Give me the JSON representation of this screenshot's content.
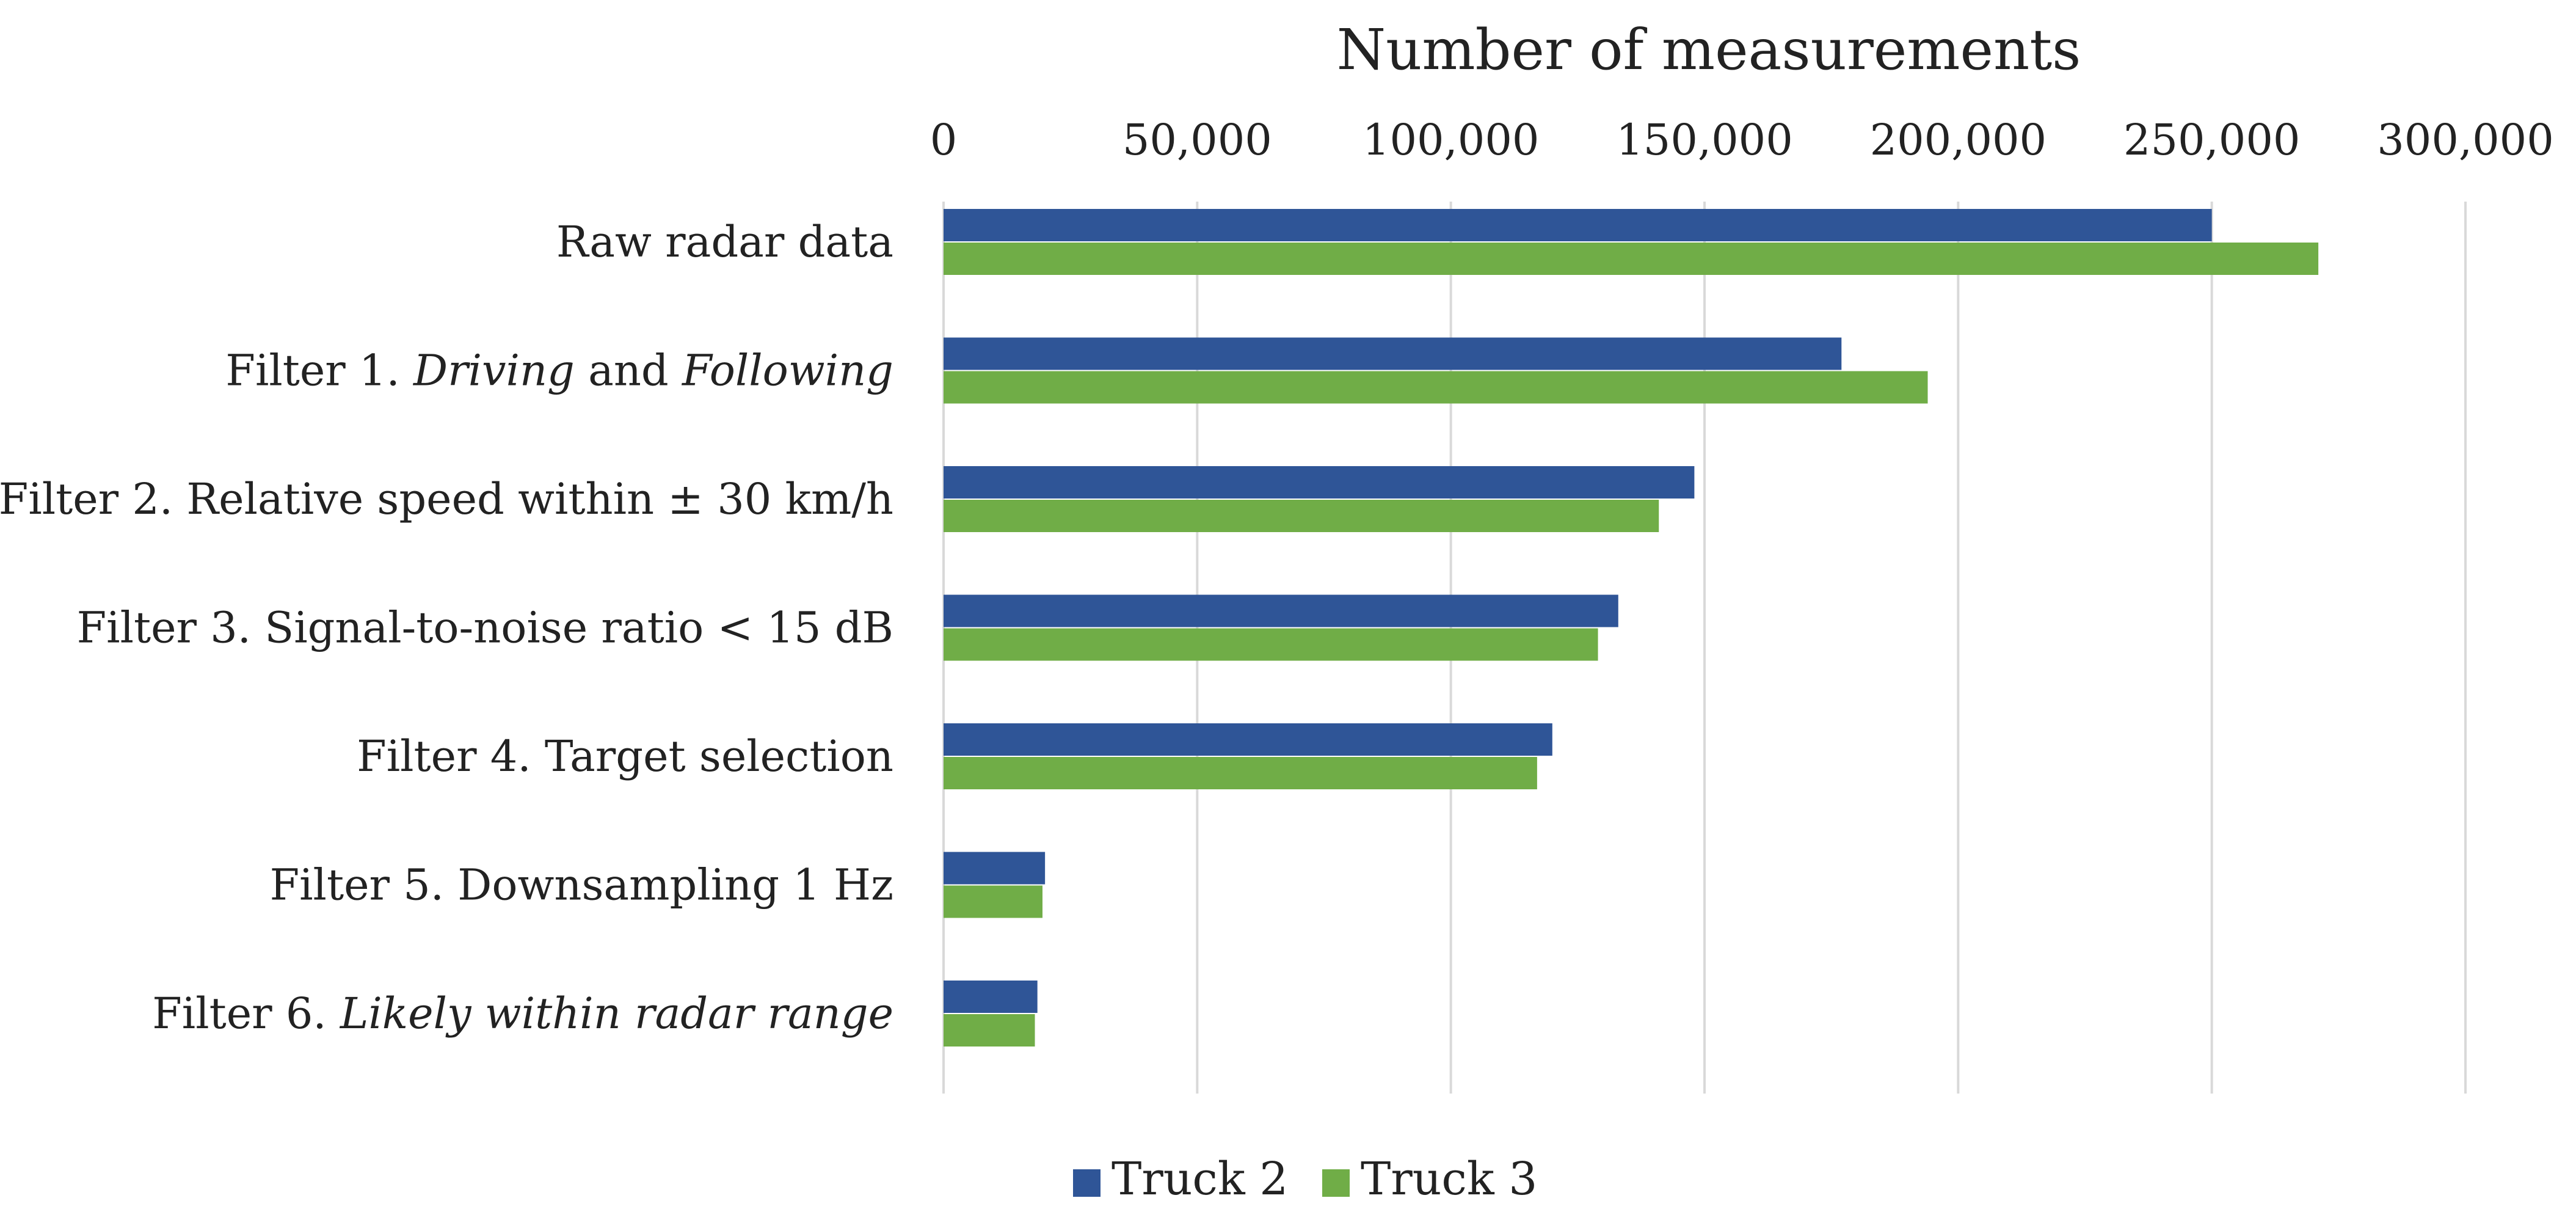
{
  "chart_data": {
    "type": "bar",
    "orientation": "horizontal",
    "title": "",
    "xlabel": "Number of measurements",
    "ylabel": "",
    "xlim": [
      0,
      300000
    ],
    "xticks": [
      0,
      50000,
      100000,
      150000,
      200000,
      250000,
      300000
    ],
    "xtick_labels": [
      "0",
      "50,000",
      "100,000",
      "150,000",
      "200,000",
      "250,000",
      "300,000"
    ],
    "x_axis_position": "top",
    "grid": true,
    "legend_position": "bottom-center",
    "categories": [
      {
        "label": [
          {
            "text": "Raw radar data",
            "italic": false
          }
        ]
      },
      {
        "label": [
          {
            "text": "Filter 1. ",
            "italic": false
          },
          {
            "text": "Driving",
            "italic": true
          },
          {
            "text": " and ",
            "italic": false
          },
          {
            "text": "Following",
            "italic": true
          }
        ]
      },
      {
        "label": [
          {
            "text": "Filter 2. Relative speed within ± 30 km/h",
            "italic": false
          }
        ]
      },
      {
        "label": [
          {
            "text": "Filter 3. Signal-to-noise ratio < 15 dB",
            "italic": false
          }
        ]
      },
      {
        "label": [
          {
            "text": "Filter 4. Target selection",
            "italic": false
          }
        ]
      },
      {
        "label": [
          {
            "text": "Filter 5. Downsampling 1 Hz",
            "italic": false
          }
        ]
      },
      {
        "label": [
          {
            "text": "Filter 6. ",
            "italic": false
          },
          {
            "text": "Likely within radar range",
            "italic": true
          }
        ]
      }
    ],
    "series": [
      {
        "name": "Truck 2",
        "color": "#2f5597",
        "values": [
          250000,
          177000,
          148000,
          133000,
          120000,
          20000,
          18500
        ]
      },
      {
        "name": "Truck 3",
        "color": "#70ad47",
        "values": [
          271000,
          194000,
          141000,
          129000,
          117000,
          19500,
          18000
        ]
      }
    ]
  }
}
